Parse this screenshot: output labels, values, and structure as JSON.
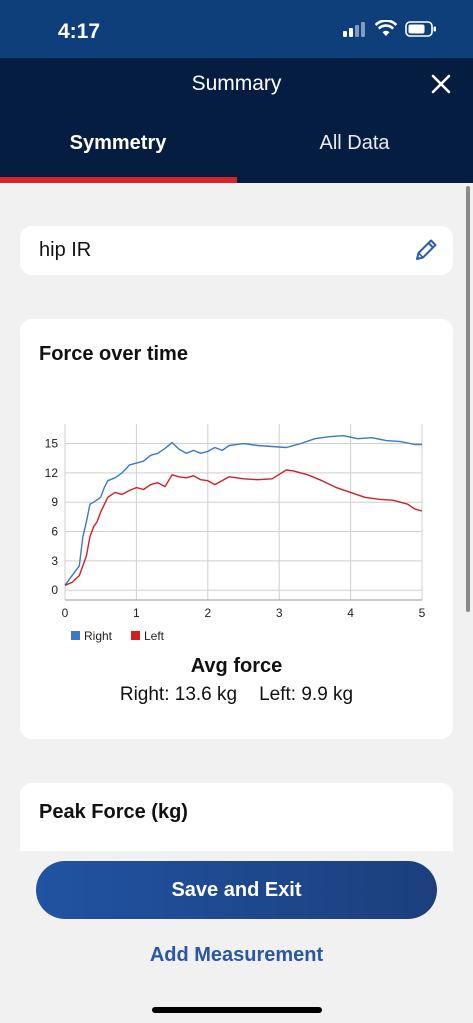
{
  "status": {
    "time": "4:17"
  },
  "header": {
    "title": "Summary",
    "close_icon": "close-icon"
  },
  "tabs": [
    {
      "label": "Symmetry",
      "active": true
    },
    {
      "label": "All Data",
      "active": false
    }
  ],
  "measurement": {
    "name": "hip IR",
    "edit_icon": "pencil-icon"
  },
  "chart_card": {
    "title": "Force over time",
    "avg_title": "Avg force",
    "right_avg": "Right: 13.6 kg",
    "left_avg": "Left: 9.9 kg"
  },
  "peak_card": {
    "title": "Peak Force (kg)"
  },
  "actions": {
    "save_label": "Save and Exit",
    "add_label": "Add Measurement"
  },
  "colors": {
    "header": "#061d42",
    "status": "#0f3f7a",
    "accent": "#d8232a",
    "right": "#3a78c9",
    "left": "#d21f26"
  },
  "chart_data": {
    "type": "line",
    "title": "Force over time",
    "xlim": [
      0,
      5
    ],
    "ylim": [
      -1,
      17
    ],
    "x_ticks": [
      0,
      1,
      2,
      3,
      4,
      5
    ],
    "y_ticks": [
      0,
      3,
      6,
      9,
      12,
      15
    ],
    "grid": true,
    "legend_position": "bottom-left",
    "series": [
      {
        "name": "Right",
        "color": "#3a78c9",
        "x": [
          0,
          0.1,
          0.15,
          0.2,
          0.25,
          0.3,
          0.35,
          0.4,
          0.5,
          0.55,
          0.6,
          0.7,
          0.8,
          0.9,
          1.0,
          1.1,
          1.2,
          1.3,
          1.4,
          1.5,
          1.6,
          1.7,
          1.8,
          1.9,
          2.0,
          2.1,
          2.2,
          2.3,
          2.5,
          2.7,
          2.9,
          3.1,
          3.3,
          3.5,
          3.7,
          3.9,
          4.1,
          4.3,
          4.5,
          4.7,
          4.9,
          5.0
        ],
        "y": [
          0.5,
          1.5,
          2.0,
          2.5,
          5.5,
          7.0,
          8.8,
          9.0,
          9.5,
          10.5,
          11.2,
          11.5,
          12.0,
          12.8,
          13.0,
          13.2,
          13.8,
          14.0,
          14.5,
          15.1,
          14.4,
          14.0,
          14.3,
          14.0,
          14.2,
          14.6,
          14.3,
          14.8,
          15.0,
          14.8,
          14.7,
          14.6,
          15.0,
          15.5,
          15.7,
          15.8,
          15.5,
          15.6,
          15.3,
          15.2,
          14.9,
          14.9
        ]
      },
      {
        "name": "Left",
        "color": "#d21f26",
        "x": [
          0,
          0.1,
          0.2,
          0.3,
          0.35,
          0.4,
          0.45,
          0.5,
          0.6,
          0.7,
          0.8,
          0.9,
          1.0,
          1.1,
          1.2,
          1.3,
          1.4,
          1.5,
          1.6,
          1.7,
          1.8,
          1.9,
          2.0,
          2.1,
          2.3,
          2.5,
          2.7,
          2.9,
          3.1,
          3.2,
          3.4,
          3.6,
          3.8,
          4.0,
          4.2,
          4.4,
          4.6,
          4.8,
          4.9,
          5.0
        ],
        "y": [
          0.5,
          0.8,
          1.5,
          3.5,
          5.5,
          6.5,
          7.0,
          8.0,
          9.5,
          10.0,
          9.8,
          10.2,
          10.5,
          10.3,
          10.8,
          11.0,
          10.6,
          11.8,
          11.6,
          11.5,
          11.7,
          11.3,
          11.2,
          10.8,
          11.6,
          11.4,
          11.3,
          11.4,
          12.3,
          12.2,
          11.8,
          11.2,
          10.5,
          10.0,
          9.5,
          9.3,
          9.2,
          8.8,
          8.3,
          8.1
        ]
      }
    ]
  }
}
